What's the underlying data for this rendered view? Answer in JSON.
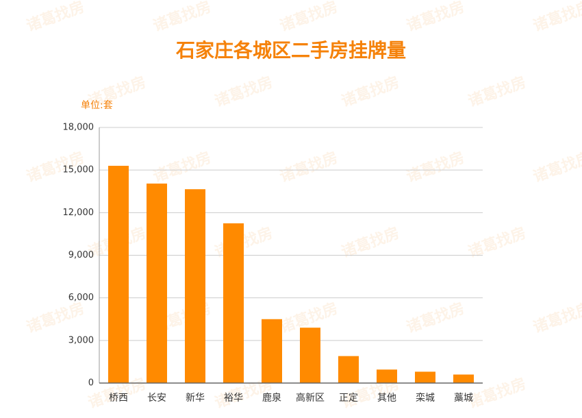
{
  "chart_data": {
    "type": "bar",
    "title": "石家庄各城区二手房挂牌量",
    "unit_label": "单位:套",
    "watermark": "诸葛找房",
    "categories": [
      "桥西",
      "长安",
      "新华",
      "裕华",
      "鹿泉",
      "高新区",
      "正定",
      "其他",
      "栾城",
      "藁城"
    ],
    "values": [
      15300,
      14050,
      13650,
      11250,
      4500,
      3900,
      1900,
      950,
      800,
      600
    ],
    "color": "#ff8a00",
    "ylim": [
      0,
      18000
    ],
    "yticks": [
      0,
      {
        "value": 3000,
        "label": "3,000"
      },
      {
        "value": 6000,
        "label": "6,000"
      },
      {
        "value": 9000,
        "label": "9,000"
      },
      {
        "value": 12000,
        "label": "12,000"
      },
      {
        "value": 15000,
        "label": "15,000"
      },
      {
        "value": 18000,
        "label": "18,000"
      }
    ],
    "grid": true
  }
}
